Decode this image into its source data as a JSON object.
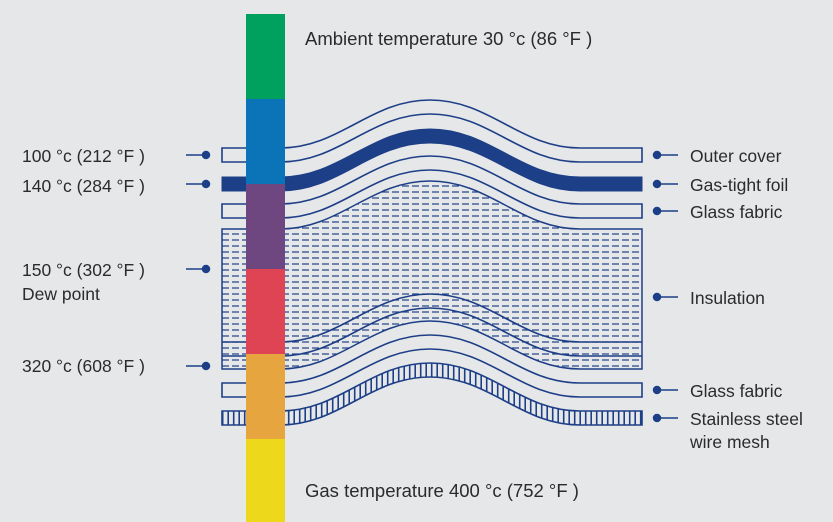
{
  "header": {
    "ambient": "Ambient temperature 30 °c (86 °F )"
  },
  "footer": {
    "gas": "Gas temperature 400 °c (752 °F )"
  },
  "left_labels": [
    {
      "text": "100 °c (212 °F )"
    },
    {
      "text": "140 °c (284 °F )"
    },
    {
      "text": "150 °c (302 °F )",
      "text2": "Dew point"
    },
    {
      "text": "320 °c (608 °F )"
    }
  ],
  "right_labels": [
    {
      "text": "Outer cover"
    },
    {
      "text": "Gas-tight foil"
    },
    {
      "text": "Glass fabric"
    },
    {
      "text": "Insulation"
    },
    {
      "text": "Glass fabric"
    },
    {
      "text": "Stainless steel",
      "text2": "wire mesh"
    }
  ],
  "temperature_bar": [
    {
      "color": "#00a15f"
    },
    {
      "color": "#0b73b8"
    },
    {
      "color": "#6e4780"
    },
    {
      "color": "#de4453"
    },
    {
      "color": "#e7a53f"
    },
    {
      "color": "#eed81b"
    }
  ],
  "colors": {
    "line": "#1d3f87",
    "background": "#e6e7e9"
  }
}
